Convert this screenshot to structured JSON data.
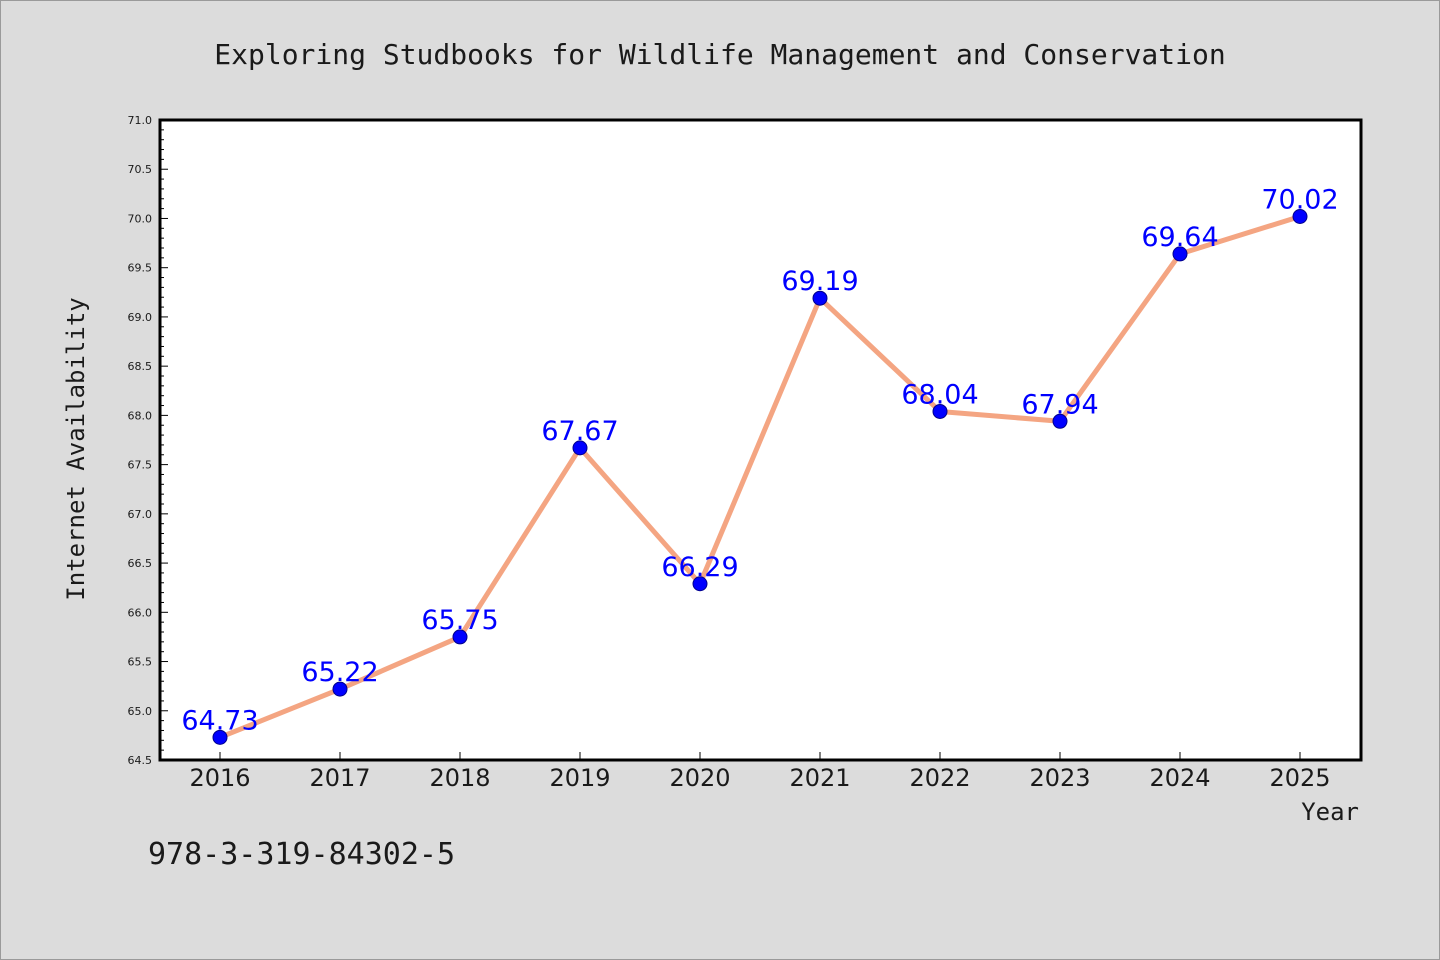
{
  "chart_data": {
    "type": "line",
    "title": "Exploring Studbooks for Wildlife Management and Conservation",
    "xlabel": "Year",
    "ylabel": "Internet Availability",
    "x": [
      "2016",
      "2017",
      "2018",
      "2019",
      "2020",
      "2021",
      "2022",
      "2023",
      "2024",
      "2025"
    ],
    "series": [
      {
        "values": [
          64.73,
          65.22,
          65.75,
          67.67,
          66.29,
          69.19,
          68.04,
          67.94,
          69.64,
          70.02
        ],
        "line_color": "#f4a582",
        "marker_color": "#0000ff"
      }
    ],
    "data_labels": [
      "64.73",
      "65.22",
      "65.75",
      "67.67",
      "66.29",
      "69.19",
      "68.04",
      "67.94",
      "69.64",
      "70.02"
    ],
    "ylim": [
      64.5,
      71.0
    ],
    "yticks": [
      "64.5",
      "65.0",
      "65.5",
      "66.0",
      "66.5",
      "67.0",
      "67.5",
      "68.0",
      "68.5",
      "69.0",
      "69.5",
      "70.0",
      "70.5",
      "71.0"
    ],
    "grid": false,
    "legend": "none"
  },
  "footnote": "978-3-319-84302-5"
}
